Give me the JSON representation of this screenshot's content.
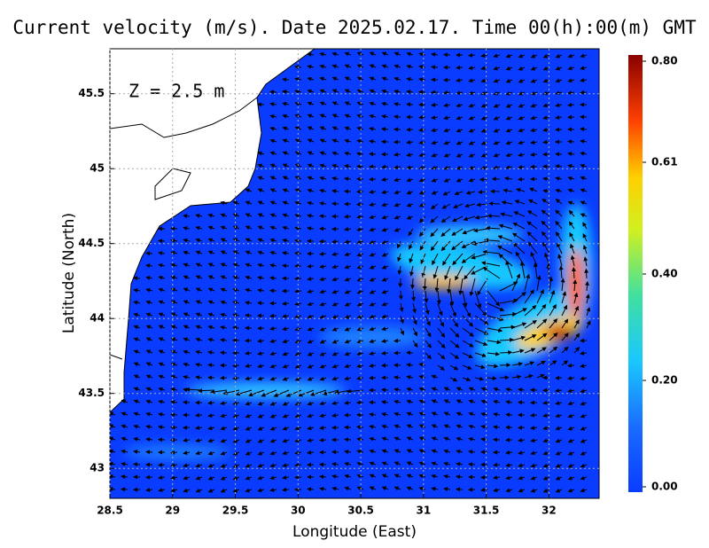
{
  "chart_data": {
    "type": "heatmap",
    "title": "Current velocity (m/s). Date 2025.02.17. Time 00(h):00(m) GMT",
    "annotation": "Z = 2.5 m",
    "x_label": "Longitude (East)",
    "y_label": "Latitude (North)",
    "xlim": [
      28.5,
      32.4
    ],
    "ylim": [
      42.8,
      45.8
    ],
    "xticks": [
      28.5,
      29,
      29.5,
      30,
      30.5,
      31,
      31.5,
      32
    ],
    "yticks": [
      43,
      43.5,
      44,
      44.5,
      45,
      45.5
    ],
    "grid": true,
    "colorbar": {
      "lim": [
        0,
        0.8
      ],
      "ticks": [
        {
          "value": 0,
          "label": "0.00"
        },
        {
          "value": 0.2,
          "label": "0.20"
        },
        {
          "value": 0.4,
          "label": "0.40"
        },
        0.61,
        {
          "value": 0.8,
          "label": "0.80"
        }
      ]
    }
  }
}
